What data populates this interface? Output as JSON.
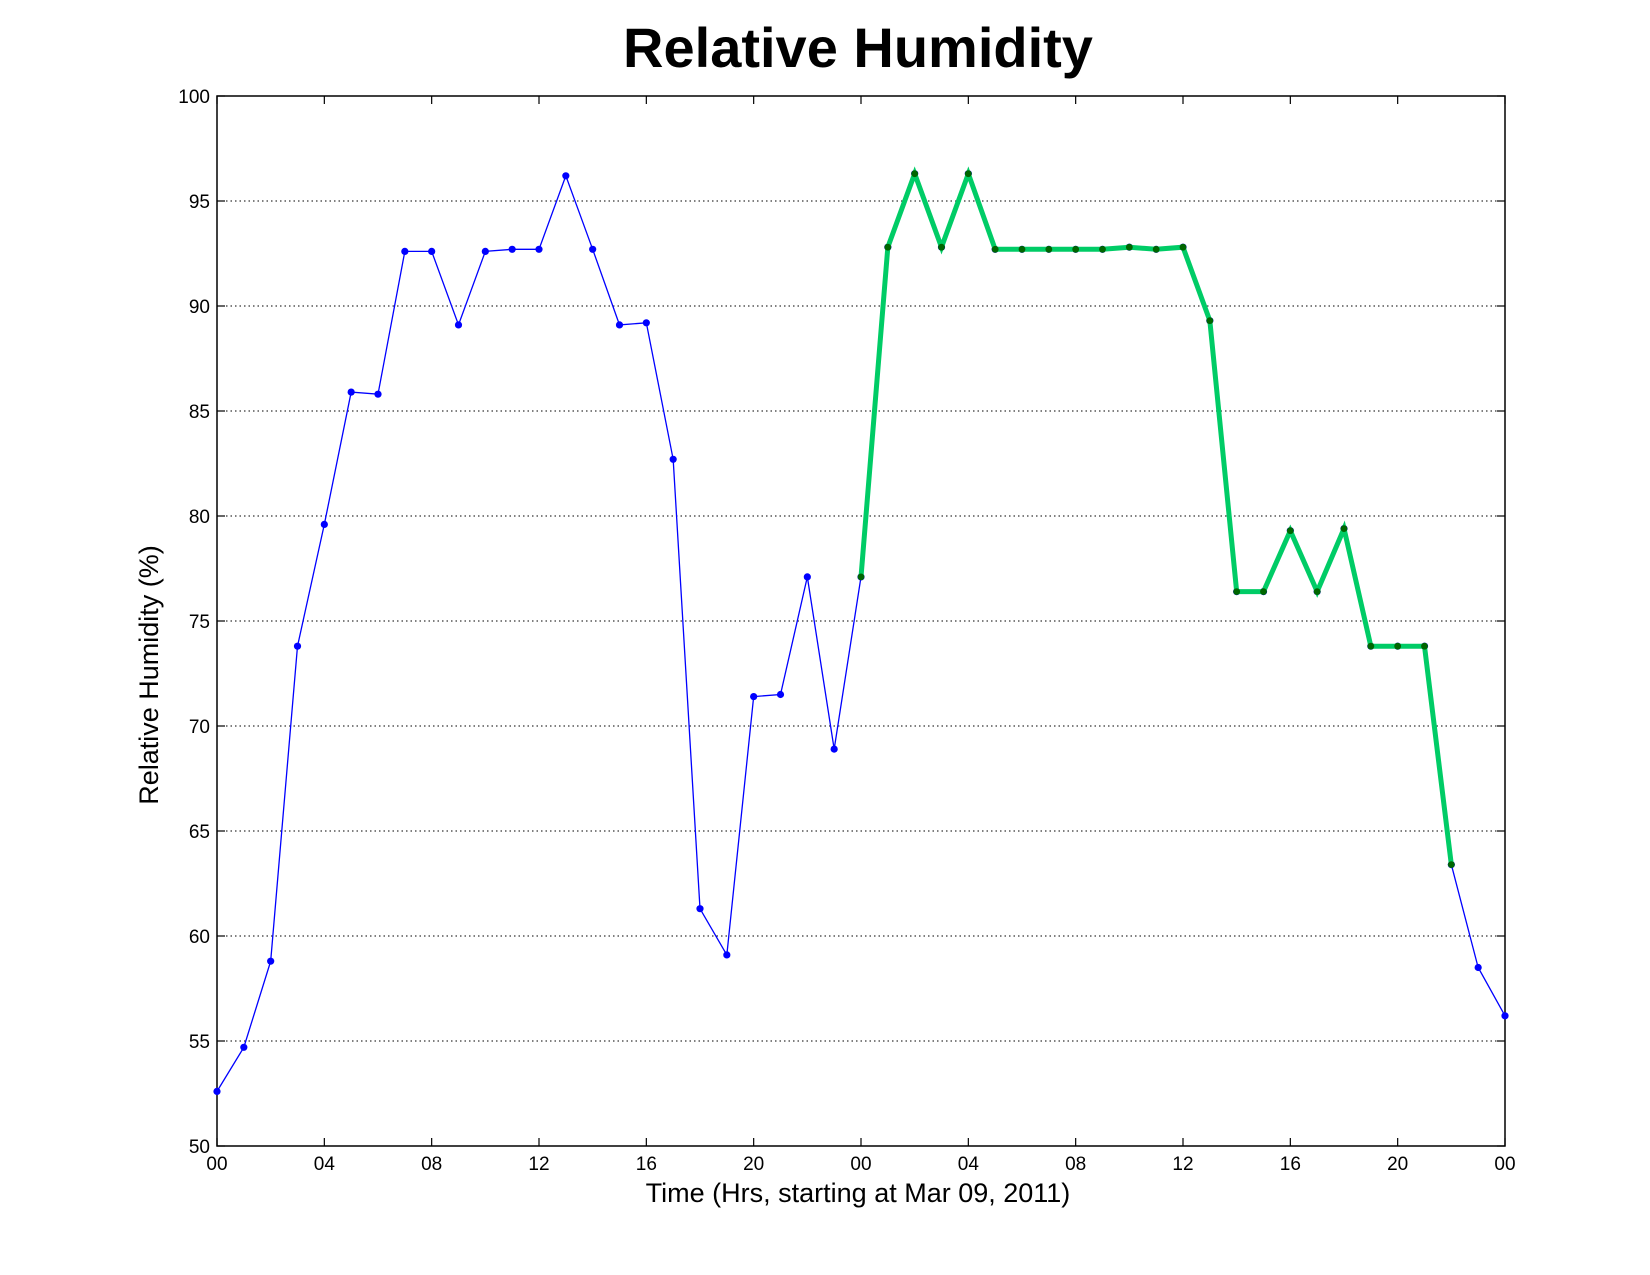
{
  "chart_data": {
    "type": "line",
    "title": "Relative Humidity",
    "xlabel": "Time (Hrs, starting at Mar 09, 2011)",
    "ylabel": "Relative Humidity (%)",
    "x_unit": "hour",
    "xlim": [
      0,
      48
    ],
    "ylim": [
      50,
      100
    ],
    "yticks": [
      50,
      55,
      60,
      65,
      70,
      75,
      80,
      85,
      90,
      95,
      100
    ],
    "xticks": [
      0,
      4,
      8,
      12,
      16,
      20,
      24,
      28,
      32,
      36,
      40,
      44,
      48
    ],
    "xtick_labels": [
      "00",
      "04",
      "08",
      "12",
      "16",
      "20",
      "00",
      "04",
      "08",
      "12",
      "16",
      "20",
      "00"
    ],
    "grid": "y-dotted",
    "legend": "none",
    "series": [
      {
        "style": "thin",
        "color": "#0000ff",
        "x": [
          0,
          1,
          2,
          3,
          4,
          5,
          6,
          7,
          8,
          9,
          10,
          11,
          12,
          13,
          14,
          15,
          16,
          17,
          18,
          19,
          20,
          21,
          22,
          23,
          24,
          25,
          26,
          27,
          28,
          29,
          30,
          31,
          32,
          33,
          34,
          35,
          36,
          37,
          38,
          39,
          40,
          41,
          42,
          43,
          44,
          45,
          46,
          47,
          48
        ],
        "y": [
          52.6,
          54.7,
          58.8,
          73.8,
          79.6,
          85.9,
          85.8,
          92.6,
          92.6,
          89.1,
          92.6,
          92.7,
          92.7,
          96.2,
          92.7,
          89.1,
          89.2,
          82.7,
          61.3,
          59.1,
          71.4,
          71.5,
          77.1,
          68.9,
          77.1,
          92.8,
          96.3,
          92.8,
          96.3,
          92.7,
          92.7,
          92.7,
          92.7,
          92.7,
          92.8,
          92.7,
          92.8,
          89.3,
          76.4,
          76.4,
          79.3,
          76.4,
          79.4,
          73.8,
          73.8,
          73.8,
          63.4,
          58.5,
          56.2
        ]
      },
      {
        "style": "thick",
        "color": "#00cc66",
        "marker_color": "#006600",
        "x": [
          24,
          25,
          26,
          27,
          28,
          29,
          30,
          31,
          32,
          33,
          34,
          35,
          36,
          37,
          38,
          39,
          40,
          41,
          42,
          43,
          44,
          45,
          46
        ],
        "y": [
          77.1,
          92.8,
          96.3,
          92.8,
          96.3,
          92.7,
          92.7,
          92.7,
          92.7,
          92.7,
          92.8,
          92.7,
          92.8,
          89.3,
          76.4,
          76.4,
          79.3,
          76.4,
          79.4,
          73.8,
          73.8,
          73.8,
          63.4
        ]
      }
    ]
  }
}
